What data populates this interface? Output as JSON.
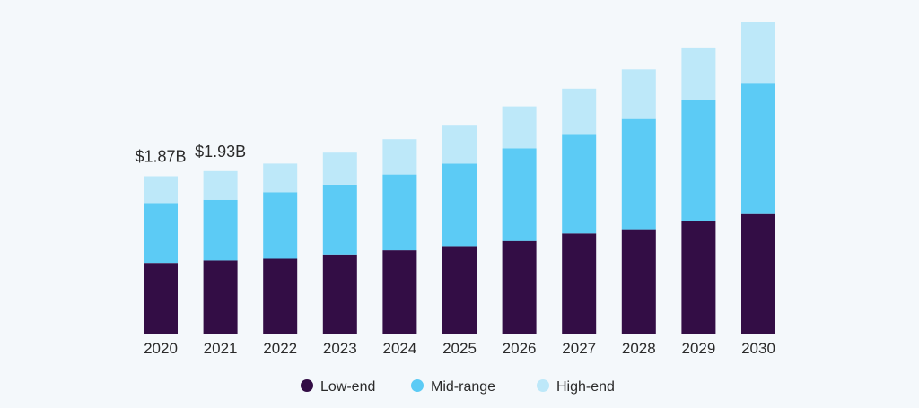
{
  "chart_data": {
    "type": "bar",
    "stacked": true,
    "title": "",
    "xlabel": "",
    "ylabel": "",
    "categories": [
      "2020",
      "2021",
      "2022",
      "2023",
      "2024",
      "2025",
      "2026",
      "2027",
      "2028",
      "2029",
      "2030"
    ],
    "series": [
      {
        "name": "Low-end",
        "color": "#330d45",
        "values": [
          0.84,
          0.87,
          0.89,
          0.94,
          0.99,
          1.04,
          1.1,
          1.19,
          1.24,
          1.34,
          1.42
        ]
      },
      {
        "name": "Mid-range",
        "color": "#5ccbf5",
        "values": [
          0.71,
          0.72,
          0.79,
          0.83,
          0.9,
          0.98,
          1.1,
          1.18,
          1.31,
          1.43,
          1.55
        ]
      },
      {
        "name": "High-end",
        "color": "#bde8f9",
        "values": [
          0.32,
          0.34,
          0.34,
          0.38,
          0.42,
          0.46,
          0.5,
          0.54,
          0.59,
          0.63,
          0.73
        ]
      }
    ],
    "ylim": [
      0,
      3.75
    ],
    "grid": false,
    "legend_position": "bottom",
    "data_labels": [
      {
        "category": "2020",
        "text": "$1.87B"
      },
      {
        "category": "2021",
        "text": "$1.93B"
      }
    ]
  }
}
